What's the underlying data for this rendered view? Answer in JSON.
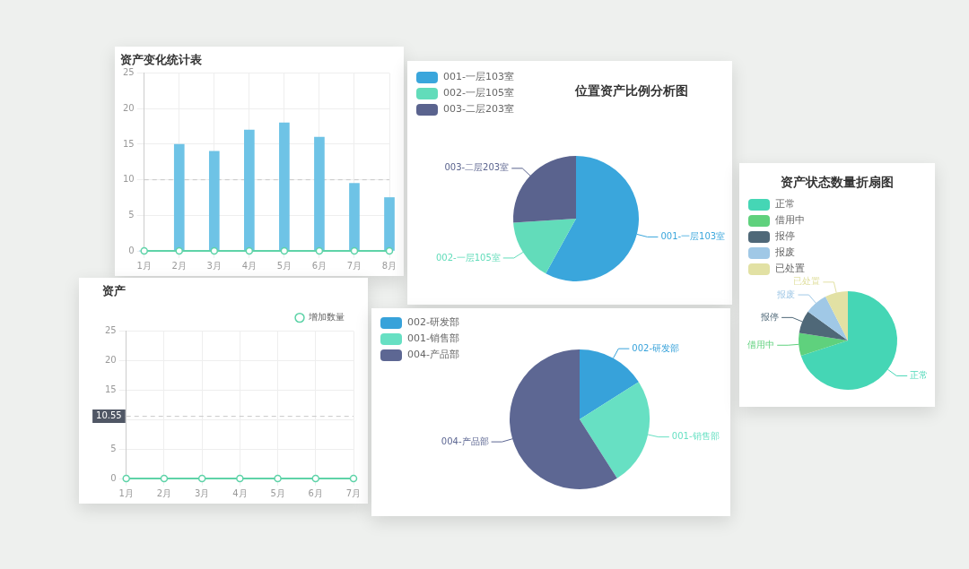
{
  "chart_data": [
    {
      "type": "bar",
      "title": "资产变化统计表",
      "categories": [
        "1月",
        "2月",
        "3月",
        "4月",
        "5月",
        "6月",
        "7月",
        "8月"
      ],
      "series": [
        {
          "type": "bar",
          "color": "#6ec3e6",
          "values": [
            0,
            15,
            14,
            17,
            18,
            16,
            9.5,
            7.5
          ]
        },
        {
          "type": "line",
          "color": "#5ed3a8",
          "values": [
            0,
            0,
            0,
            0,
            0,
            0,
            0,
            0
          ]
        }
      ],
      "ylim": [
        0,
        25
      ],
      "yticks": [
        0,
        5,
        10,
        15,
        20,
        25
      ],
      "grid": true,
      "marker": "circle",
      "ref_lines": [
        {
          "axis": "y",
          "value": 10,
          "line_style": "dashed",
          "color": "#c8c8c8"
        }
      ]
    },
    {
      "type": "line",
      "title": "资产",
      "categories": [
        "1月",
        "2月",
        "3月",
        "4月",
        "5月",
        "6月",
        "7月"
      ],
      "series": [
        {
          "name": "增加数量",
          "color": "#5ed3a8",
          "values": [
            0,
            0,
            0,
            0,
            0,
            0,
            0
          ]
        }
      ],
      "ylim": [
        0,
        25
      ],
      "yticks": [
        0,
        5,
        {
          "value": 10,
          "label": null
        },
        15,
        20,
        25
      ],
      "grid": true,
      "marker": "circle",
      "legend": "top right",
      "ref_lines": [
        {
          "axis": "y",
          "value": 10.55,
          "label": "10.55",
          "line_style": "dashed",
          "color": "#c8c8c8"
        }
      ]
    },
    {
      "type": "pie",
      "title": "位置资产比例分析图",
      "categories": [
        "001-一层103室",
        "002-一层105室",
        "003-二层203室"
      ],
      "values": [
        58,
        16,
        26
      ],
      "colors": [
        "#3aa6dc",
        "#62dcba",
        "#5a638e"
      ],
      "legend": "top left"
    },
    {
      "type": "pie",
      "categories": [
        "002-研发部",
        "001-销售部",
        "004-产品部"
      ],
      "values": [
        16,
        25,
        59
      ],
      "colors": [
        "#37a2da",
        "#67e0c3",
        "#5d6793"
      ],
      "legend": "top left"
    },
    {
      "type": "pie",
      "title": "资产状态数量折扇图",
      "categories": [
        "正常",
        "借用中",
        "报停",
        "报废",
        "已处置"
      ],
      "values": [
        70,
        7.5,
        7.5,
        7.5,
        7.5
      ],
      "colors": [
        "#45d6b5",
        "#5fd17d",
        "#4f6878",
        "#a0c8e6",
        "#e2e1a4"
      ],
      "legend": "top left"
    }
  ]
}
